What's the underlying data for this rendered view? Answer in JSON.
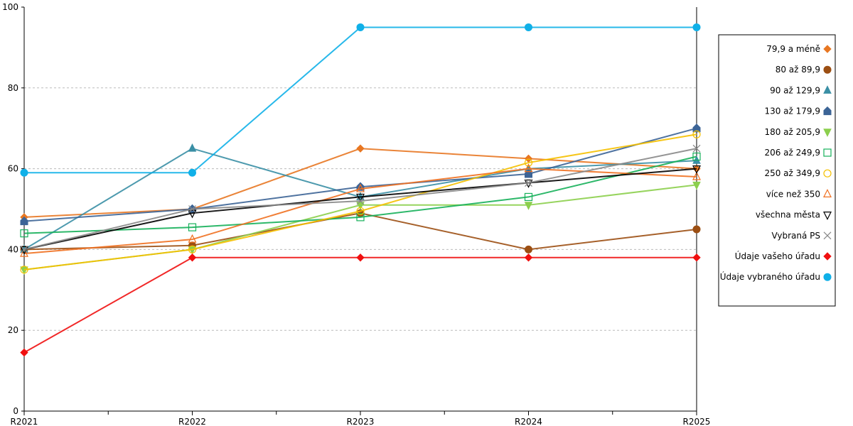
{
  "chart_data": {
    "type": "line",
    "title": "",
    "xlabel": "",
    "ylabel": "",
    "ylim": [
      0,
      100
    ],
    "yticks": [
      0,
      20,
      40,
      60,
      80,
      100
    ],
    "grid": "horizontal dashed",
    "legend_placement": "right",
    "categories": [
      "R2021",
      "R2022",
      "R2023",
      "R2024",
      "R2025"
    ],
    "series": [
      {
        "name": "79,9 a méně",
        "color": "#e87722",
        "marker": "diamond",
        "fill": true,
        "values": [
          48,
          50,
          65,
          62.5,
          60
        ]
      },
      {
        "name": "80 až 89,9",
        "color": "#9c4f13",
        "marker": "circle",
        "fill": true,
        "values": [
          40,
          41,
          49,
          40,
          45
        ]
      },
      {
        "name": "90 až 129,9",
        "color": "#3a8fa5",
        "marker": "triangle",
        "fill": true,
        "values": [
          40,
          65,
          53,
          60,
          62
        ]
      },
      {
        "name": "130 až 179,9",
        "color": "#3c6496",
        "marker": "house",
        "fill": true,
        "values": [
          47,
          50,
          55.5,
          58.7,
          70
        ]
      },
      {
        "name": "180 až 205,9",
        "color": "#8ccf4d",
        "marker": "triangle-down",
        "fill": true,
        "values": [
          35,
          40,
          51,
          51,
          56
        ]
      },
      {
        "name": "206 až 249,9",
        "color": "#16b05a",
        "marker": "square",
        "fill": false,
        "values": [
          44,
          45.5,
          48,
          53,
          63
        ]
      },
      {
        "name": "250 až 349,9",
        "color": "#f5c000",
        "marker": "circle",
        "fill": false,
        "values": [
          35,
          40,
          49.5,
          61.5,
          68.5
        ]
      },
      {
        "name": "více než 350",
        "color": "#f07020",
        "marker": "triangle",
        "fill": false,
        "values": [
          39,
          42.5,
          55,
          60,
          58
        ]
      },
      {
        "name": "všechna města",
        "color": "#000000",
        "marker": "triangle-down",
        "fill": false,
        "values": [
          40,
          49,
          53,
          56.5,
          60
        ]
      },
      {
        "name": "Vybraná PS",
        "color": "#888888",
        "marker": "x",
        "fill": false,
        "values": [
          40,
          50,
          52,
          56.5,
          65
        ]
      },
      {
        "name": "Údaje vašeho úřadu",
        "color": "#f01010",
        "marker": "diamond",
        "fill": true,
        "values": [
          14.5,
          38,
          38,
          38,
          38
        ]
      },
      {
        "name": "Údaje vybraného úřadu",
        "color": "#10b0e8",
        "marker": "circle",
        "fill": true,
        "values": [
          59,
          59,
          95,
          95,
          95
        ]
      }
    ]
  }
}
